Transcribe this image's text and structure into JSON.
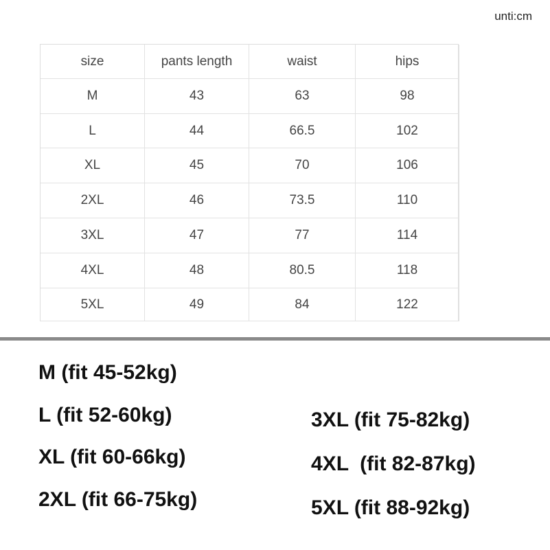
{
  "unit": "unti:cm",
  "table": {
    "header": [
      "size",
      "pants length",
      "waist",
      "hips"
    ],
    "rows": [
      [
        "M",
        43,
        63,
        98
      ],
      [
        "L",
        44,
        66.5,
        102
      ],
      [
        "XL",
        45,
        70,
        106
      ],
      [
        "2XL",
        46,
        73.5,
        110
      ],
      [
        "3XL",
        47,
        77,
        114
      ],
      [
        "4XL",
        48,
        80.5,
        118
      ],
      [
        "5XL",
        49,
        84,
        122
      ]
    ]
  },
  "fit_left": [
    "M (fit 45-52kg)",
    "L (fit 52-60kg)",
    "XL (fit 60-66kg)",
    "2XL (fit 66-75kg)"
  ],
  "fit_right": [
    "3XL (fit 75-82kg)",
    "4XL  (fit 82-87kg)",
    "5XL (fit 88-92kg)"
  ]
}
